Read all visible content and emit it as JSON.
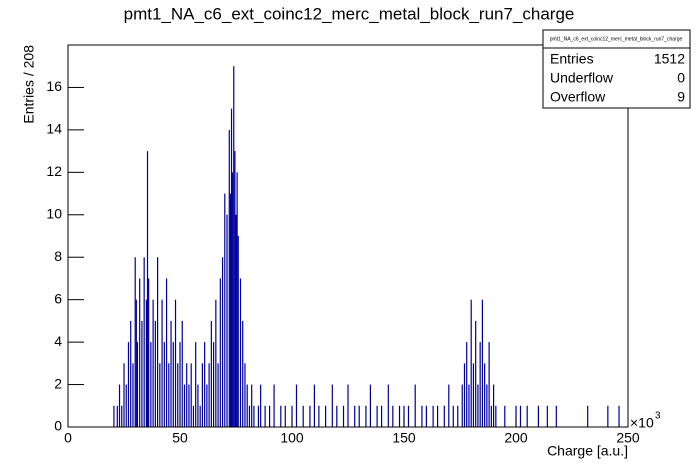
{
  "chart_data": {
    "type": "histogram",
    "title": "pmt1_NA_c6_ext_coinc12_merc_metal_block_run7_charge",
    "x_label": "Charge [a.u.]",
    "y_label": "Entries / 208",
    "x_scale_label": {
      "base": "×10",
      "exponent": "3"
    },
    "color": "#000099",
    "xlim": [
      0,
      250
    ],
    "xticks": [
      0,
      50,
      100,
      150,
      200,
      250
    ],
    "ylim": [
      0,
      18
    ],
    "yticks": [
      0,
      2,
      4,
      6,
      8,
      10,
      12,
      14,
      16
    ],
    "stats": {
      "name": "pmt1_NA_c6_ext_coinc12_merc_metal_block_run7_charge",
      "rows": [
        {
          "label": "Entries",
          "value": 1512
        },
        {
          "label": "Underflow",
          "value": 0
        },
        {
          "label": "Overflow",
          "value": 9
        }
      ]
    },
    "x": [
      20.5,
      22,
      23,
      24,
      25,
      26,
      27,
      28,
      29,
      30,
      30.5,
      31,
      32,
      33,
      34,
      35,
      35.5,
      36,
      37,
      38,
      39,
      40,
      41,
      42,
      43,
      44,
      45,
      46,
      47,
      48,
      49,
      50,
      51,
      52,
      53,
      54,
      55,
      56,
      57,
      58,
      59,
      60,
      61,
      62,
      63,
      64,
      65,
      66,
      67,
      68,
      69,
      70,
      71,
      72,
      72.5,
      73,
      73.5,
      74,
      74.5,
      75,
      75.5,
      76,
      77,
      78,
      79,
      80,
      81,
      82,
      83,
      85,
      86,
      88,
      90,
      92,
      95,
      97,
      100,
      102,
      105,
      108,
      110,
      112,
      115,
      118,
      120,
      123,
      125,
      128,
      130,
      133,
      135,
      138,
      140,
      143,
      145,
      148,
      150,
      152,
      155,
      158,
      160,
      163,
      165,
      168,
      170,
      172,
      174,
      176,
      177,
      178,
      179,
      180,
      181,
      182,
      183,
      184,
      185,
      186,
      187,
      188,
      189,
      190,
      191,
      195,
      200,
      202,
      205,
      210,
      214,
      218,
      232,
      241,
      246
    ],
    "values": [
      1,
      1,
      2,
      1,
      3,
      2,
      4,
      5,
      3,
      8,
      6,
      4,
      7,
      5,
      8,
      6,
      13,
      7,
      4,
      6,
      5,
      8,
      3,
      6,
      4,
      7,
      3,
      5,
      4,
      6,
      3,
      4,
      5,
      2,
      3,
      2,
      3,
      1,
      4,
      2,
      1,
      3,
      4,
      2,
      3,
      5,
      4,
      6,
      3,
      7,
      8,
      11,
      10,
      14,
      11,
      15,
      12,
      17,
      13,
      10,
      12,
      9,
      7,
      5,
      3,
      2,
      1,
      2,
      1,
      1,
      2,
      1,
      1,
      2,
      1,
      1,
      1,
      2,
      1,
      1,
      2,
      1,
      1,
      2,
      1,
      1,
      2,
      1,
      1,
      1,
      2,
      1,
      1,
      2,
      1,
      1,
      1,
      1,
      2,
      1,
      1,
      1,
      1,
      1,
      2,
      1,
      1,
      2,
      3,
      4,
      2,
      6,
      3,
      5,
      2,
      4,
      6,
      3,
      2,
      4,
      1,
      2,
      1,
      1,
      1,
      1,
      1,
      1,
      1,
      1,
      1,
      1,
      1
    ]
  }
}
